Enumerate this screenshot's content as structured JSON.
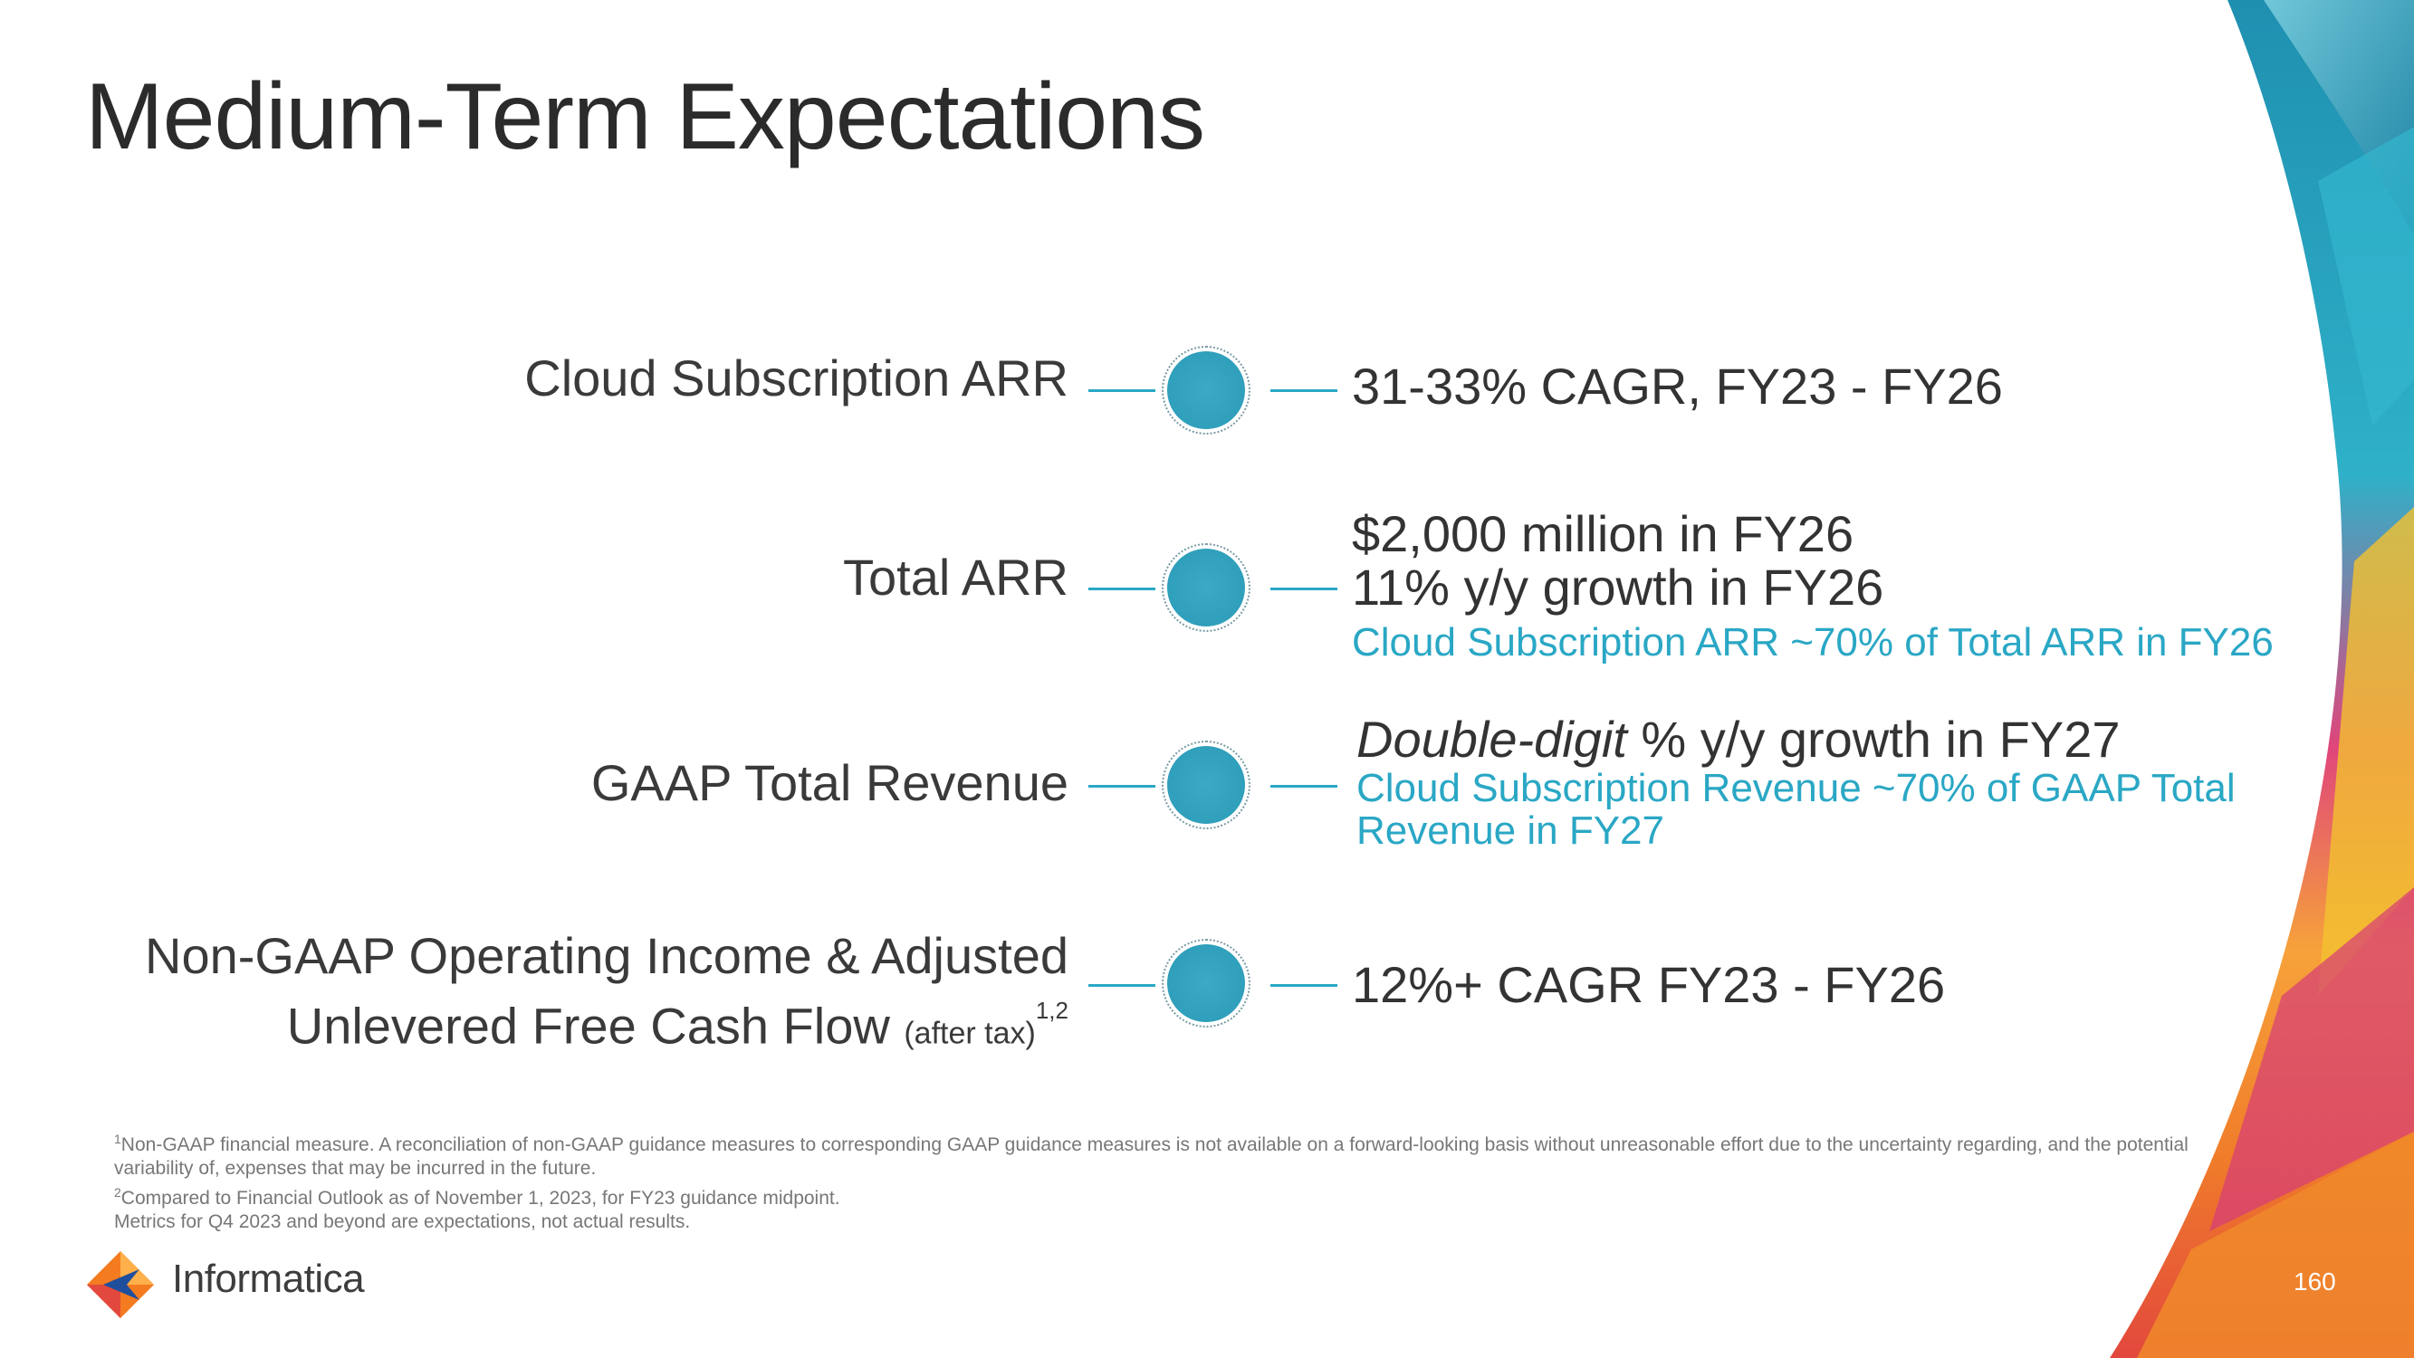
{
  "title": "Medium-Term Expectations",
  "colors": {
    "accent": "#2aa7c5",
    "text": "#333333",
    "footnote": "#777777"
  },
  "rows": [
    {
      "label": "Cloud Subscription ARR",
      "values": [
        "31-33% CAGR, FY23 - FY26"
      ]
    },
    {
      "label": "Total ARR",
      "values": [
        "$2,000 million in FY26",
        "11% y/y growth in FY26"
      ],
      "note": "Cloud Subscription ARR ~70% of Total ARR in FY26"
    },
    {
      "label": "GAAP Total Revenue",
      "value_italic": "Double-digit",
      "value_rest": " % y/y growth in FY27",
      "note_line1": "Cloud Subscription Revenue ~70% of GAAP Total",
      "note_line2": "Revenue in FY27"
    },
    {
      "label_line1": "Non-GAAP Operating Income & Adjusted",
      "label_line2": "Unlevered Free Cash Flow",
      "label_small": "(after tax)",
      "label_sup": "1,2",
      "values": [
        "12%+ CAGR FY23 - FY26"
      ]
    }
  ],
  "footnotes": {
    "n1_mark": "1",
    "n1": "Non-GAAP financial measure. A reconciliation of non-GAAP guidance measures to corresponding GAAP guidance measures is not available on a forward-looking basis without unreasonable effort due to the uncertainty regarding, and the potential variability of, expenses that may be incurred in the future.",
    "n2_mark": "2",
    "n2": "Compared to Financial Outlook as of November 1, 2023, for FY23 guidance midpoint.",
    "n3": "Metrics for Q4 2023 and beyond are expectations, not actual results."
  },
  "logo": {
    "text": "Informatica",
    "icon": "informatica-diamond-icon"
  },
  "page_number": "160"
}
